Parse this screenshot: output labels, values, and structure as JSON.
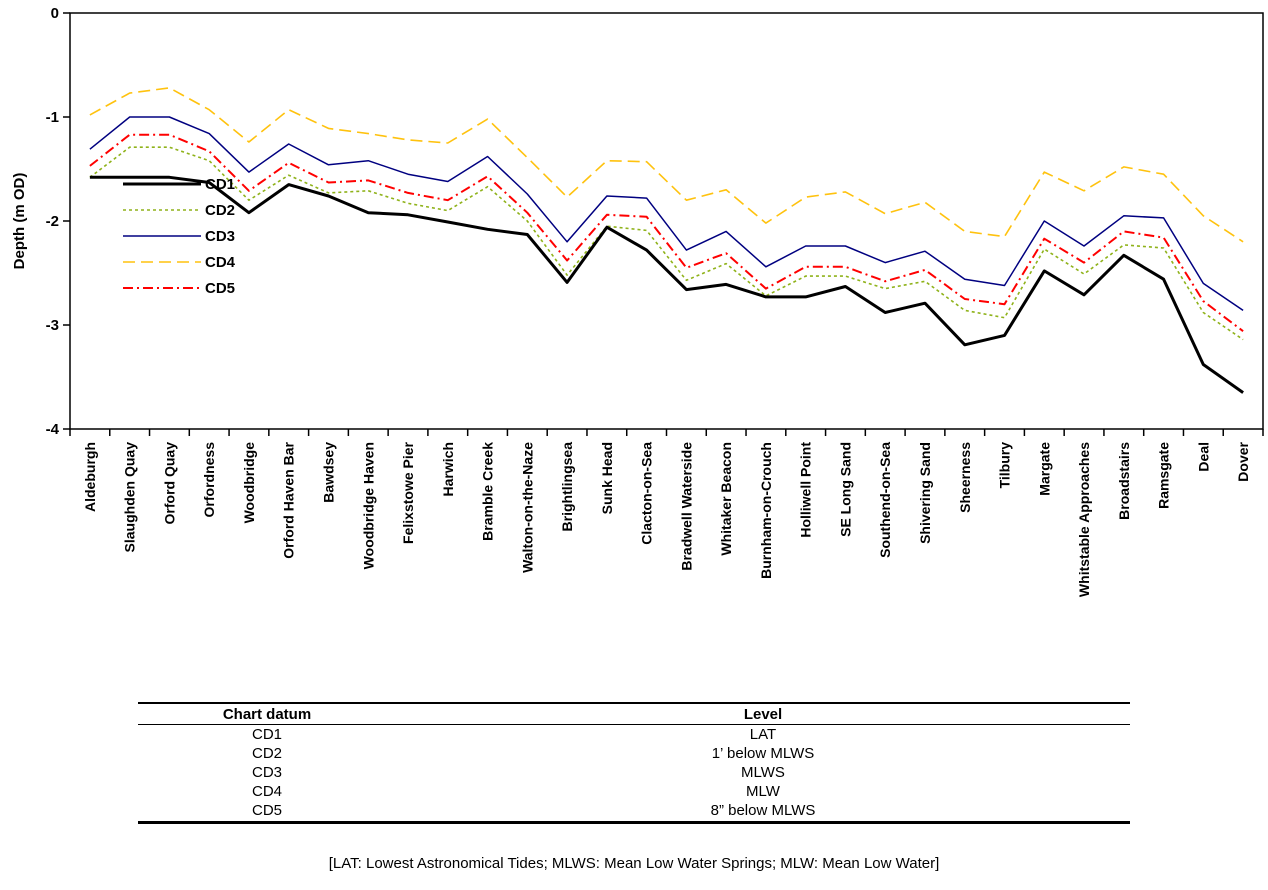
{
  "chart_data": {
    "type": "line",
    "ylabel": "Depth (m OD)",
    "xlabel": "",
    "ylim": [
      -4,
      0
    ],
    "yticks": [
      0,
      -1,
      -2,
      -3,
      -4
    ],
    "grid": false,
    "legend_position": "left",
    "categories": [
      "Aldeburgh",
      "Slaughden Quay",
      "Orford Quay",
      "Orfordness",
      "Woodbridge",
      "Orford Haven Bar",
      "Bawdsey",
      "Woodbridge Haven",
      "Felixstowe Pier",
      "Harwich",
      "Bramble Creek",
      "Walton-on-the-Naze",
      "Brightlingsea",
      "Sunk Head",
      "Clacton-on-Sea",
      "Bradwell Waterside",
      "Whitaker Beacon",
      "Burnham-on-Crouch",
      "Holliwell Point",
      "SE Long Sand",
      "Southend-on-Sea",
      "Shivering Sand",
      "Sheerness",
      "Tilbury",
      "Margate",
      "Whitstable Approaches",
      "Broadstairs",
      "Ramsgate",
      "Deal",
      "Dover"
    ],
    "series": [
      {
        "name": "CD1",
        "color": "#000000",
        "style": "solid-thick",
        "values": [
          -1.58,
          -1.58,
          -1.58,
          -1.63,
          -1.92,
          -1.65,
          -1.76,
          -1.92,
          -1.94,
          -2.01,
          -2.08,
          -2.13,
          -2.59,
          -2.06,
          -2.28,
          -2.66,
          -2.61,
          -2.73,
          -2.73,
          -2.63,
          -2.88,
          -2.79,
          -3.19,
          -3.1,
          -2.48,
          -2.71,
          -2.33,
          -2.56,
          -3.38,
          -3.65
        ]
      },
      {
        "name": "CD2",
        "color": "#8fb21a",
        "style": "dotted",
        "values": [
          -1.58,
          -1.29,
          -1.29,
          -1.42,
          -1.8,
          -1.56,
          -1.73,
          -1.71,
          -1.83,
          -1.9,
          -1.67,
          -2.0,
          -2.52,
          -2.05,
          -2.09,
          -2.57,
          -2.41,
          -2.72,
          -2.53,
          -2.53,
          -2.65,
          -2.58,
          -2.86,
          -2.93,
          -2.27,
          -2.51,
          -2.23,
          -2.26,
          -2.88,
          -3.14
        ]
      },
      {
        "name": "CD3",
        "color": "#000080",
        "style": "solid",
        "values": [
          -1.31,
          -1.0,
          -1.0,
          -1.16,
          -1.53,
          -1.26,
          -1.46,
          -1.42,
          -1.55,
          -1.62,
          -1.38,
          -1.74,
          -2.2,
          -1.76,
          -1.78,
          -2.28,
          -2.1,
          -2.44,
          -2.24,
          -2.24,
          -2.4,
          -2.29,
          -2.56,
          -2.62,
          -2.0,
          -2.24,
          -1.95,
          -1.97,
          -2.6,
          -2.86
        ]
      },
      {
        "name": "CD4",
        "color": "#ffc20e",
        "style": "dashed",
        "values": [
          -0.98,
          -0.77,
          -0.72,
          -0.93,
          -1.24,
          -0.93,
          -1.11,
          -1.16,
          -1.22,
          -1.25,
          -1.02,
          -1.39,
          -1.77,
          -1.42,
          -1.43,
          -1.8,
          -1.7,
          -2.02,
          -1.77,
          -1.72,
          -1.93,
          -1.82,
          -2.1,
          -2.15,
          -1.53,
          -1.71,
          -1.48,
          -1.55,
          -1.95,
          -2.2
        ]
      },
      {
        "name": "CD5",
        "color": "#ff0000",
        "style": "dash-dot",
        "values": [
          -1.47,
          -1.17,
          -1.17,
          -1.33,
          -1.71,
          -1.44,
          -1.63,
          -1.61,
          -1.73,
          -1.8,
          -1.57,
          -1.92,
          -2.38,
          -1.94,
          -1.96,
          -2.45,
          -2.31,
          -2.65,
          -2.44,
          -2.44,
          -2.58,
          -2.47,
          -2.75,
          -2.8,
          -2.17,
          -2.4,
          -2.1,
          -2.16,
          -2.77,
          -3.06
        ]
      }
    ]
  },
  "datum_table": {
    "headers": {
      "datum": "Chart datum",
      "level": "Level"
    },
    "rows": [
      {
        "datum": "CD1",
        "level": "LAT"
      },
      {
        "datum": "CD2",
        "level": "1’ below MLWS"
      },
      {
        "datum": "CD3",
        "level": "MLWS"
      },
      {
        "datum": "CD4",
        "level": "MLW"
      },
      {
        "datum": "CD5",
        "level": "8” below MLWS"
      }
    ]
  },
  "footnote": "[LAT: Lowest Astronomical Tides; MLWS: Mean Low Water Springs; MLW: Mean Low Water]"
}
